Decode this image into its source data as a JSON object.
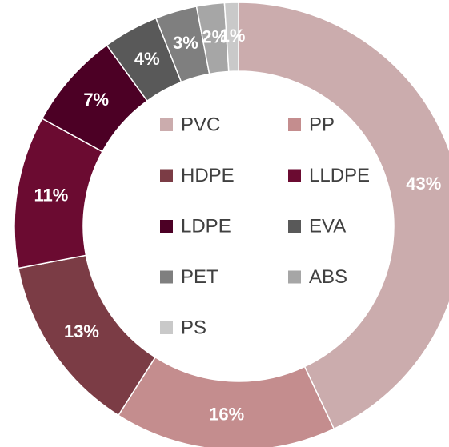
{
  "chart_data": {
    "type": "donut",
    "categories": [
      "PVC",
      "PP",
      "HDPE",
      "LLDPE",
      "LDPE",
      "EVA",
      "PET",
      "ABS",
      "PS"
    ],
    "values": [
      43,
      16,
      13,
      11,
      7,
      4,
      3,
      2,
      1
    ],
    "value_labels": [
      "43%",
      "16%",
      "13%",
      "11%",
      "7%",
      "4%",
      "3%",
      "2%",
      "1%"
    ],
    "colors": [
      "#cbacad",
      "#c48d8e",
      "#7b3c45",
      "#6b0b31",
      "#4c0025",
      "#595959",
      "#7f7f7f",
      "#a6a6a6",
      "#c9c9c9"
    ],
    "legend": "center"
  }
}
